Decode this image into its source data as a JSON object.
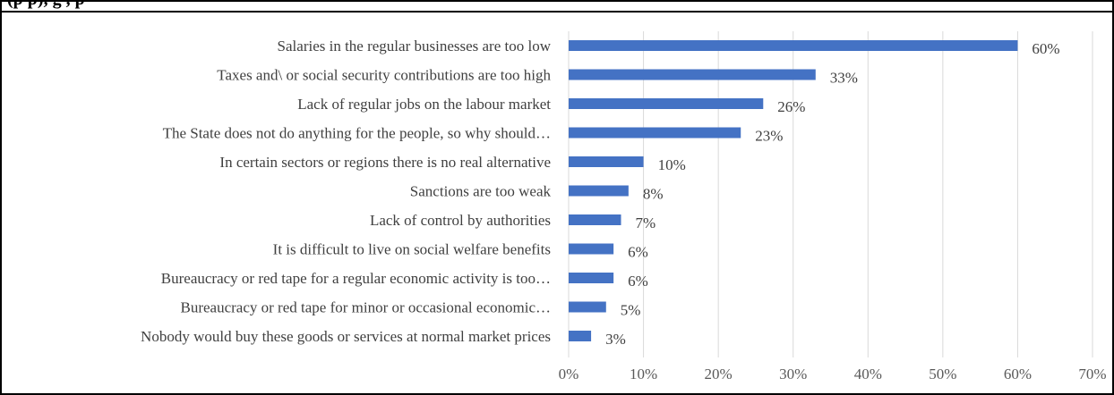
{
  "header": {
    "partial_title": "(p                              p),     g   ,  p"
  },
  "chart_data": {
    "type": "bar",
    "orientation": "horizontal",
    "categories": [
      "Salaries in the regular businesses are too low",
      "Taxes and\\ or social security contributions are too high",
      "Lack of regular jobs on the labour market",
      "The State does not do anything for the people, so why should…",
      "In certain sectors or regions there is no real alternative",
      "Sanctions are too weak",
      "Lack of control by authorities",
      "It is difficult to live on social welfare benefits",
      "Bureaucracy or red tape for a regular economic activity is too…",
      "Bureaucracy or red tape for minor or occasional economic…",
      "Nobody would buy these goods or services at normal market prices"
    ],
    "values": [
      60,
      33,
      26,
      23,
      10,
      8,
      7,
      6,
      6,
      5,
      3
    ],
    "data_labels": [
      "60%",
      "33%",
      "26%",
      "23%",
      "10%",
      "8%",
      "7%",
      "6%",
      "6%",
      "5%",
      "3%"
    ],
    "x_ticks": [
      "0%",
      "10%",
      "20%",
      "30%",
      "40%",
      "50%",
      "60%",
      "70%"
    ],
    "xlim": [
      0,
      70
    ],
    "grid": "vertical",
    "legend": "none",
    "bar_color": "#4472C4",
    "grid_color": "#d9d9d9",
    "frame_color": "#000000"
  }
}
